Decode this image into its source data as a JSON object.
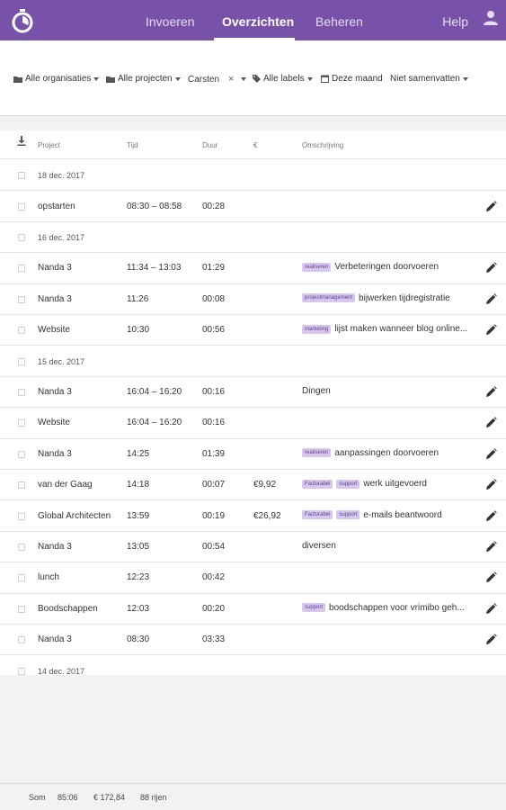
{
  "nav": {
    "tabs": [
      {
        "label": "Invoeren"
      },
      {
        "label": "Overzichten"
      },
      {
        "label": "Beheren"
      }
    ],
    "help": "Help"
  },
  "filters": {
    "organisations": "Alle organisaties",
    "projects": "Alle projecten",
    "user": "Carsten",
    "clear": "×",
    "labels": "Alle labels",
    "period": "Deze maand",
    "group": "Niet samenvatten"
  },
  "table": {
    "headers": {
      "project": "Project",
      "time": "Tijd",
      "duration": "Duur",
      "amount": "€",
      "description": "Omschrijving"
    },
    "rows": [
      {
        "type": "date",
        "label": "18 dec. 2017"
      },
      {
        "type": "entry",
        "project": "opstarten",
        "time": "08:30 – 08:58",
        "duration": "00:28",
        "amount": "",
        "tags": [],
        "desc": ""
      },
      {
        "type": "date",
        "label": "16 dec. 2017"
      },
      {
        "type": "entry",
        "project": "Nanda 3",
        "time": "11:34 – 13:03",
        "duration": "01:29",
        "amount": "",
        "tags": [
          "realiseren"
        ],
        "desc": "Verbeteringen doorvoeren"
      },
      {
        "type": "entry",
        "project": "Nanda 3",
        "time": "11:26",
        "duration": "00:08",
        "amount": "",
        "tags": [
          "projectmanagement"
        ],
        "desc": "bijwerken tijdregistratie"
      },
      {
        "type": "entry",
        "project": "Website",
        "time": "10:30",
        "duration": "00:56",
        "amount": "",
        "tags": [
          "marketing"
        ],
        "desc": "lijst maken wanneer blog online..."
      },
      {
        "type": "date",
        "label": "15 dec. 2017"
      },
      {
        "type": "entry",
        "project": "Nanda 3",
        "time": "16:04 – 16:20",
        "duration": "00:16",
        "amount": "",
        "tags": [],
        "desc": "Dingen"
      },
      {
        "type": "entry",
        "project": "Website",
        "time": "16:04 – 16:20",
        "duration": "00:16",
        "amount": "",
        "tags": [],
        "desc": ""
      },
      {
        "type": "entry",
        "project": "Nanda 3",
        "time": "14:25",
        "duration": "01:39",
        "amount": "",
        "tags": [
          "realiseren"
        ],
        "desc": "aanpassingen doorvoeren"
      },
      {
        "type": "entry",
        "project": "van der Gaag",
        "time": "14:18",
        "duration": "00:07",
        "amount": "€9,92",
        "tags": [
          "Facturabel",
          "support"
        ],
        "desc": "werk uitgevoerd"
      },
      {
        "type": "entry",
        "project": "Global Architecten",
        "time": "13:59",
        "duration": "00:19",
        "amount": "€26,92",
        "tags": [
          "Facturabel",
          "support"
        ],
        "desc": "e-mails beantwoord"
      },
      {
        "type": "entry",
        "project": "Nanda 3",
        "time": "13:05",
        "duration": "00:54",
        "amount": "",
        "tags": [],
        "desc": "diversen"
      },
      {
        "type": "entry",
        "project": "lunch",
        "time": "12:23",
        "duration": "00:42",
        "amount": "",
        "tags": [],
        "desc": ""
      },
      {
        "type": "entry",
        "project": "Boodschappen",
        "time": "12:03",
        "duration": "00:20",
        "amount": "",
        "tags": [
          "support"
        ],
        "desc": "boodschappen voor vrimibo geh..."
      },
      {
        "type": "entry",
        "project": "Nanda 3",
        "time": "08:30",
        "duration": "03:33",
        "amount": "",
        "tags": [],
        "desc": ""
      },
      {
        "type": "date",
        "label": "14 dec. 2017"
      }
    ]
  },
  "footer": {
    "sum_label": "Som",
    "total_duration": "85:06",
    "total_amount": "€ 172,84",
    "row_count": "88 rijen"
  },
  "colors": {
    "brand": "#7852a9",
    "tag_bg": "#d6c8ec",
    "tag_text": "#5e3d91"
  }
}
